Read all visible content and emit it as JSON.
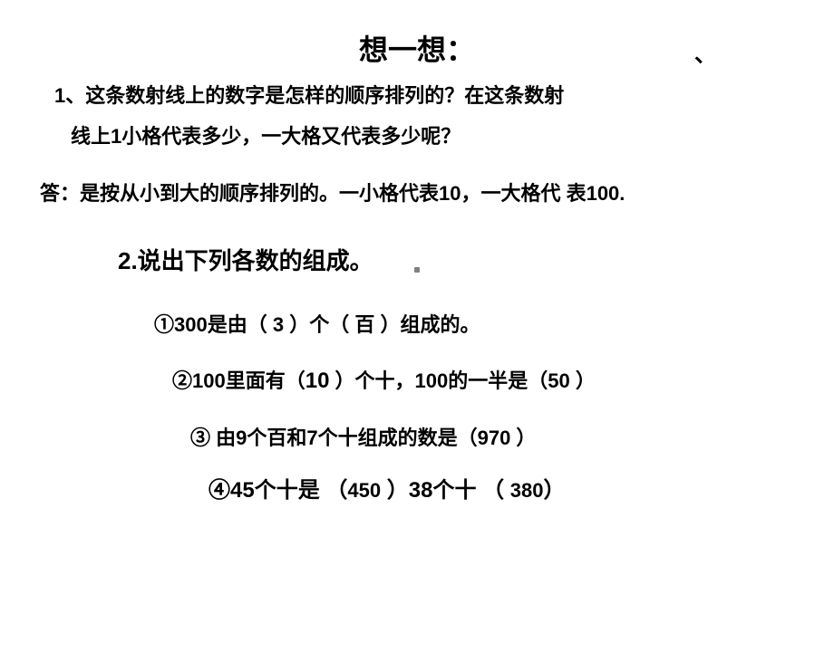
{
  "stray": "、",
  "title": "想一想：",
  "q1_line1": "1、这条数射线上的数字是怎样的顺序排列的？在这条数射",
  "q1_line2": "线上1小格代表多少，一大格又代表多少呢？",
  "answer1": "答：是按从小到大的顺序排列的。一小格代表10，一大格代 表100.",
  "q2_title": "2.说出下列各数的组成。",
  "i1": {
    "pre": "①300是由（ ",
    "a1": "3",
    "mid": " ）个（ ",
    "a2": "百",
    "post": " ）组成的。"
  },
  "i2": {
    "pre": "②100里面有（",
    "a1": "10",
    "mid": " ）个十，100的一半是（",
    "a2": "50",
    "post": "  ）"
  },
  "i3": {
    "pre": "③ 由9个百和7个十组成的数是（",
    "a1": "970",
    "post": " ）"
  },
  "i4": {
    "pre": "④45个十是 （",
    "a1": "450",
    "mid": "  ）38个十 （ ",
    "a2": "380",
    "post": "）"
  }
}
